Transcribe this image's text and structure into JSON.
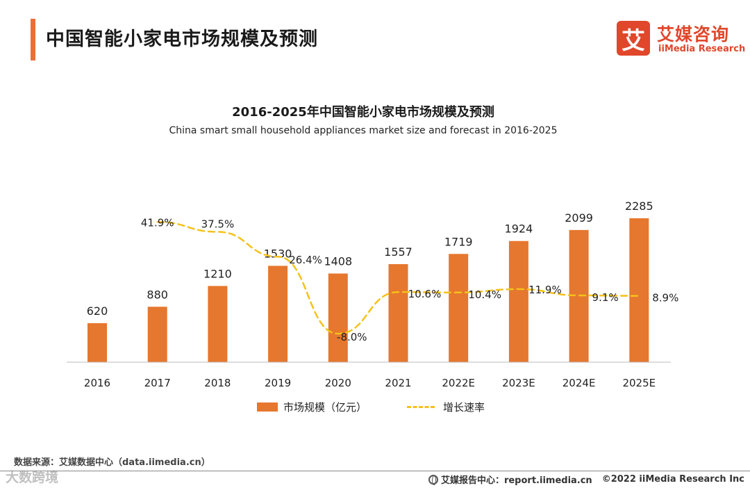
{
  "header": {
    "title": "中国智能小家电市场规模及预测",
    "logo_mark": "艾",
    "logo_cn": "艾媒咨询",
    "logo_en": "iiMedia Research"
  },
  "colors": {
    "accent": "#ec6e35",
    "bar": "#e6772e",
    "line": "#f5c11a",
    "brand": "#e0472b"
  },
  "chart_data": {
    "type": "bar",
    "title": "2016-2025年中国智能小家电市场规模及预测",
    "subtitle": "China smart small household appliances market size and forecast in 2016-2025",
    "categories": [
      "2016",
      "2017",
      "2018",
      "2019",
      "2020",
      "2021",
      "2022E",
      "2023E",
      "2024E",
      "2025E"
    ],
    "series": [
      {
        "name": "市场规模（亿元）",
        "type": "bar",
        "values": [
          620,
          880,
          1210,
          1530,
          1408,
          1557,
          1719,
          1924,
          2099,
          2285
        ],
        "labels": [
          "620",
          "880",
          "1210",
          "1530",
          "1408",
          "1557",
          "1719",
          "1924",
          "2099",
          "2285"
        ]
      },
      {
        "name": "增长速率",
        "type": "line",
        "style": "dashed",
        "values": [
          null,
          41.9,
          37.5,
          26.4,
          -8.0,
          10.6,
          10.4,
          11.9,
          9.1,
          8.9
        ],
        "labels": [
          "",
          "41.9%",
          "37.5%",
          "26.4%",
          "-8.0%",
          "10.6%",
          "10.4%",
          "11.9%",
          "9.1%",
          "8.9%"
        ]
      }
    ],
    "legend_position": "bottom",
    "grid": false
  },
  "footer": {
    "source": "数据来源：艾媒数据中心（data.iimedia.cn）",
    "report_site": "艾媒报告中心：report.iimedia.cn",
    "copyright": "©2022  iiMedia Research  Inc",
    "watermark": "大数跨境"
  }
}
